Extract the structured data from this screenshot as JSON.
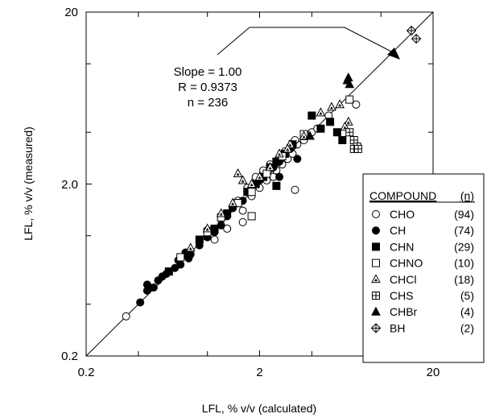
{
  "chart_data": {
    "type": "scatter",
    "xlabel": "LFL, % v/v (calculated)",
    "ylabel": "LFL, % v/v (measured)",
    "xscale": "log",
    "yscale": "log",
    "xlim": [
      0.2,
      20
    ],
    "ylim": [
      0.2,
      20
    ],
    "x_tick_labels": [
      "0.2",
      "2",
      "20"
    ],
    "y_tick_labels": [
      "0.2",
      "2.0",
      "20"
    ],
    "fit_line": {
      "slope": 1.0,
      "points": [
        [
          0.2,
          0.2
        ],
        [
          20,
          20
        ]
      ]
    },
    "annotation": {
      "lines": [
        "Slope = 1.00",
        "R = 0.9373",
        "n = 236"
      ]
    },
    "legend": {
      "position": "right",
      "header": {
        "compound": "COMPOUND",
        "n": "(n)"
      }
    },
    "series": [
      {
        "name": "CHO",
        "count": "(94)",
        "marker": "circle-open",
        "points": [
          [
            0.34,
            0.34
          ],
          [
            1.1,
            0.95
          ],
          [
            1.3,
            1.1
          ],
          [
            1.6,
            1.4
          ],
          [
            1.8,
            1.7
          ],
          [
            2.0,
            1.9
          ],
          [
            2.2,
            2.1
          ],
          [
            2.4,
            2.2
          ],
          [
            2.5,
            2.4
          ],
          [
            2.7,
            2.6
          ],
          [
            2.9,
            2.8
          ],
          [
            3.1,
            3.0
          ],
          [
            3.3,
            3.4
          ],
          [
            3.6,
            3.6
          ],
          [
            4.0,
            4.0
          ],
          [
            4.3,
            4.2
          ],
          [
            5.0,
            5.0
          ],
          [
            7.2,
            5.8
          ],
          [
            3.2,
            1.85
          ],
          [
            1.6,
            1.2
          ],
          [
            0.9,
            0.92
          ],
          [
            1.0,
            1.08
          ],
          [
            1.25,
            1.3
          ],
          [
            1.5,
            1.6
          ],
          [
            1.7,
            1.9
          ],
          [
            1.9,
            2.2
          ],
          [
            2.1,
            2.4
          ],
          [
            2.3,
            2.6
          ],
          [
            2.6,
            2.8
          ],
          [
            2.8,
            3.1
          ],
          [
            3.0,
            3.3
          ],
          [
            3.2,
            3.6
          ],
          [
            1.2,
            1.25
          ],
          [
            1.4,
            1.45
          ]
        ]
      },
      {
        "name": "CH",
        "count": "(74)",
        "marker": "circle-filled",
        "points": [
          [
            0.41,
            0.41
          ],
          [
            0.45,
            0.52
          ],
          [
            0.49,
            0.5
          ],
          [
            0.52,
            0.55
          ],
          [
            0.55,
            0.58
          ],
          [
            0.6,
            0.62
          ],
          [
            0.65,
            0.65
          ],
          [
            0.7,
            0.68
          ],
          [
            0.75,
            0.8
          ],
          [
            0.8,
            0.78
          ],
          [
            0.9,
            0.88
          ],
          [
            1.0,
            0.98
          ],
          [
            1.1,
            1.05
          ],
          [
            1.2,
            1.15
          ],
          [
            1.3,
            1.3
          ],
          [
            1.4,
            1.45
          ],
          [
            1.6,
            1.6
          ],
          [
            1.8,
            1.8
          ],
          [
            2.0,
            2.1
          ],
          [
            2.2,
            2.3
          ],
          [
            2.4,
            2.5
          ],
          [
            2.6,
            2.7
          ],
          [
            2.8,
            3.0
          ],
          [
            3.0,
            3.2
          ],
          [
            3.3,
            2.8
          ],
          [
            2.6,
            2.2
          ],
          [
            0.45,
            0.48
          ],
          [
            0.58,
            0.6
          ],
          [
            0.68,
            0.72
          ],
          [
            0.78,
            0.74
          ]
        ]
      },
      {
        "name": "CHN",
        "count": "(29)",
        "marker": "square-filled",
        "points": [
          [
            0.6,
            0.62
          ],
          [
            0.75,
            0.78
          ],
          [
            0.9,
            0.95
          ],
          [
            1.1,
            1.1
          ],
          [
            1.3,
            1.35
          ],
          [
            1.5,
            1.55
          ],
          [
            1.7,
            1.8
          ],
          [
            1.9,
            2.0
          ],
          [
            2.1,
            2.2
          ],
          [
            2.3,
            2.5
          ],
          [
            2.5,
            1.95
          ],
          [
            2.5,
            2.7
          ],
          [
            2.8,
            3.0
          ],
          [
            3.1,
            3.4
          ],
          [
            4.0,
            5.0
          ],
          [
            5.1,
            4.6
          ],
          [
            5.6,
            4.0
          ],
          [
            6.0,
            3.6
          ],
          [
            3.6,
            3.8
          ],
          [
            4.5,
            4.2
          ]
        ]
      },
      {
        "name": "CHNO",
        "count": "(10)",
        "marker": "square-open",
        "points": [
          [
            0.7,
            0.75
          ],
          [
            1.0,
            1.05
          ],
          [
            1.2,
            1.28
          ],
          [
            1.5,
            1.55
          ],
          [
            1.8,
            1.8
          ],
          [
            1.8,
            1.3
          ],
          [
            2.2,
            2.3
          ],
          [
            2.7,
            2.9
          ],
          [
            3.6,
            3.9
          ],
          [
            6.6,
            6.2
          ]
        ]
      },
      {
        "name": "CHCl",
        "count": "(18)",
        "marker": "triangle-open",
        "points": [
          [
            0.8,
            0.85
          ],
          [
            1.0,
            1.1
          ],
          [
            1.2,
            1.35
          ],
          [
            1.4,
            1.55
          ],
          [
            1.5,
            2.3
          ],
          [
            1.6,
            2.1
          ],
          [
            1.8,
            2.0
          ],
          [
            2.0,
            2.2
          ],
          [
            2.3,
            2.5
          ],
          [
            2.6,
            3.0
          ],
          [
            3.0,
            3.4
          ],
          [
            3.6,
            3.8
          ],
          [
            4.5,
            5.2
          ],
          [
            5.2,
            5.6
          ],
          [
            5.8,
            5.8
          ],
          [
            6.5,
            4.6
          ],
          [
            6.2,
            4.3
          ],
          [
            2.9,
            3.2
          ]
        ]
      },
      {
        "name": "CHS",
        "count": "(5)",
        "marker": "square-plus",
        "points": [
          [
            6.6,
            4.0
          ],
          [
            7.0,
            3.6
          ],
          [
            7.3,
            3.3
          ],
          [
            7.0,
            3.2
          ],
          [
            7.4,
            3.2
          ]
        ]
      },
      {
        "name": "CHBr",
        "count": "(4)",
        "marker": "triangle-filled",
        "points": [
          [
            3.9,
            3.8
          ],
          [
            6.4,
            8.0
          ],
          [
            6.6,
            7.6
          ],
          [
            6.5,
            8.3
          ]
        ]
      },
      {
        "name": "BH",
        "count": "(2)",
        "marker": "diamond-hatched",
        "points": [
          [
            15.0,
            15.6
          ],
          [
            16.0,
            14.0
          ]
        ]
      }
    ]
  }
}
